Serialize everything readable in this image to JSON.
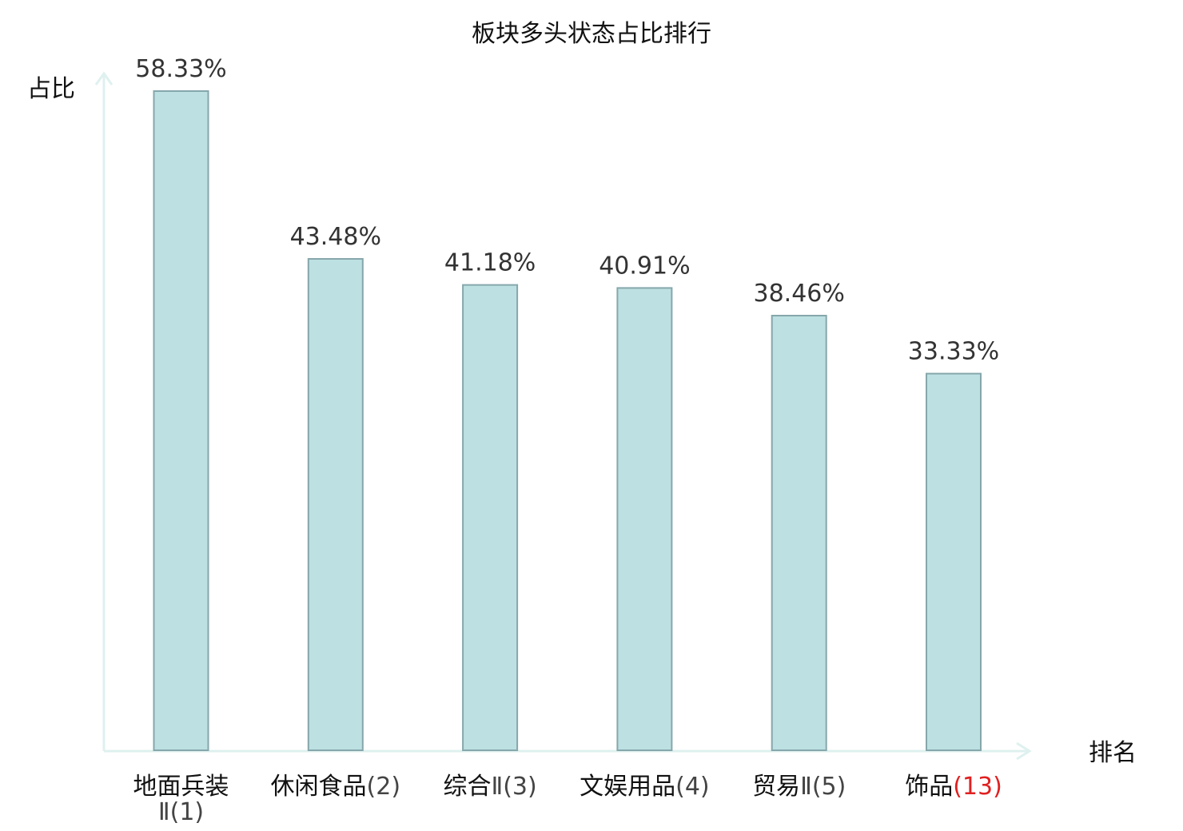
{
  "chart_data": {
    "type": "bar",
    "title": "板块多头状态占比排行",
    "ylabel": "占比",
    "xlabel": "排名",
    "categories": [
      "地面兵装Ⅱ(1)",
      "休闲食品(2)",
      "综合Ⅱ(3)",
      "文娱用品(4)",
      "贸易Ⅱ(5)",
      "饰品(13)"
    ],
    "values": [
      58.33,
      43.48,
      41.18,
      40.91,
      38.46,
      33.33
    ],
    "value_labels": [
      "58.33%",
      "43.48%",
      "41.18%",
      "40.91%",
      "38.46%",
      "33.33%"
    ],
    "ylim": [
      0,
      60
    ],
    "grid": false,
    "legend": "none",
    "colors": {
      "bar_fill": "#bde0e3",
      "bar_stroke": "#86a7ab",
      "axis": "#dff1ef",
      "highlight_label": "#e02020",
      "label": "#111111"
    },
    "highlight_index": 5
  }
}
